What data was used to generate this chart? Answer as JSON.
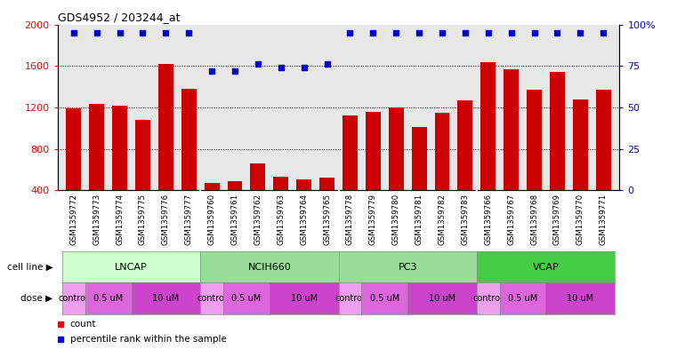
{
  "title": "GDS4952 / 203244_at",
  "samples": [
    "GSM1359772",
    "GSM1359773",
    "GSM1359774",
    "GSM1359775",
    "GSM1359776",
    "GSM1359777",
    "GSM1359760",
    "GSM1359761",
    "GSM1359762",
    "GSM1359763",
    "GSM1359764",
    "GSM1359765",
    "GSM1359778",
    "GSM1359779",
    "GSM1359780",
    "GSM1359781",
    "GSM1359782",
    "GSM1359783",
    "GSM1359766",
    "GSM1359767",
    "GSM1359768",
    "GSM1359769",
    "GSM1359770",
    "GSM1359771"
  ],
  "counts": [
    1190,
    1230,
    1215,
    1080,
    1620,
    1380,
    470,
    490,
    660,
    530,
    505,
    525,
    1120,
    1155,
    1195,
    1010,
    1150,
    1270,
    1640,
    1570,
    1370,
    1540,
    1280,
    1370
  ],
  "percentile_ranks": [
    95,
    95,
    95,
    95,
    95,
    95,
    72,
    72,
    76,
    74,
    74,
    76,
    95,
    95,
    95,
    95,
    95,
    95,
    95,
    95,
    95,
    95,
    95,
    95
  ],
  "ylim_left": [
    400,
    2000
  ],
  "ylim_right": [
    0,
    100
  ],
  "yticks_left": [
    400,
    800,
    1200,
    1600,
    2000
  ],
  "yticks_right": [
    0,
    25,
    50,
    75,
    100
  ],
  "bar_color": "#cc0000",
  "dot_color": "#0000cc",
  "plot_bg_color": "#e8e8e8",
  "cell_line_names": [
    "LNCAP",
    "NCIH660",
    "PC3",
    "VCAP"
  ],
  "cell_line_colors": [
    "#ccffcc",
    "#99dd99",
    "#99dd99",
    "#44cc44"
  ],
  "cell_line_ranges": [
    [
      0,
      6
    ],
    [
      6,
      12
    ],
    [
      12,
      18
    ],
    [
      18,
      24
    ]
  ],
  "dose_groups": [
    [
      [
        0,
        1,
        "control"
      ],
      [
        1,
        3,
        "0.5 uM"
      ],
      [
        3,
        6,
        "10 uM"
      ]
    ],
    [
      [
        6,
        7,
        "control"
      ],
      [
        7,
        9,
        "0.5 uM"
      ],
      [
        9,
        12,
        "10 uM"
      ]
    ],
    [
      [
        12,
        13,
        "control"
      ],
      [
        13,
        15,
        "0.5 uM"
      ],
      [
        15,
        18,
        "10 uM"
      ]
    ],
    [
      [
        18,
        19,
        "control"
      ],
      [
        19,
        21,
        "0.5 uM"
      ],
      [
        21,
        24,
        "10 uM"
      ]
    ]
  ],
  "dose_color_map": {
    "control": "#eea0ee",
    "0.5 uM": "#dd66dd",
    "10 uM": "#cc44cc"
  },
  "background_color": "#ffffff"
}
